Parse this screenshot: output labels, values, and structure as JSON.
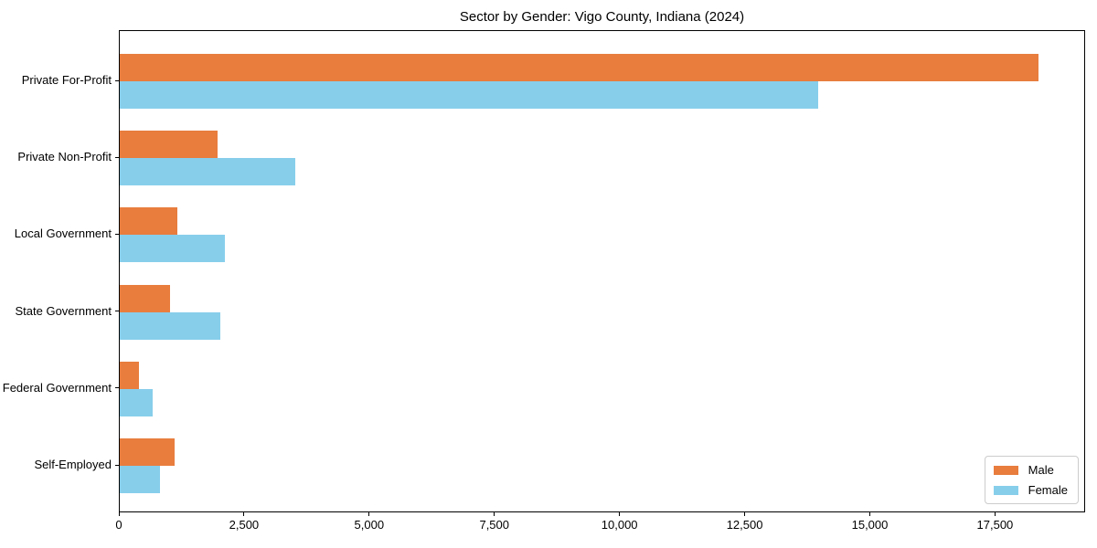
{
  "chart_data": {
    "type": "bar",
    "orientation": "horizontal",
    "title": "Sector by Gender: Vigo County, Indiana (2024)",
    "xlabel": "",
    "ylabel": "",
    "categories": [
      "Private For-Profit",
      "Private Non-Profit",
      "Local Government",
      "State Government",
      "Federal Government",
      "Self-Employed"
    ],
    "series": [
      {
        "name": "Male",
        "color": "#e87d3e",
        "values": [
          18350,
          1950,
          1150,
          1000,
          390,
          1100
        ]
      },
      {
        "name": "Female",
        "color": "#87ceeb",
        "values": [
          13950,
          3500,
          2100,
          2000,
          660,
          800
        ]
      }
    ],
    "xlim": [
      0,
      19300
    ],
    "x_ticks": [
      0,
      2500,
      5000,
      7500,
      10000,
      12500,
      15000,
      17500
    ],
    "x_tick_labels": [
      "0",
      "2,500",
      "5,000",
      "7,500",
      "10,000",
      "12,500",
      "15,000",
      "17,500"
    ],
    "grid": false,
    "background": "#ffffff",
    "spine_color": "#000000",
    "legend_position": "lower right"
  }
}
